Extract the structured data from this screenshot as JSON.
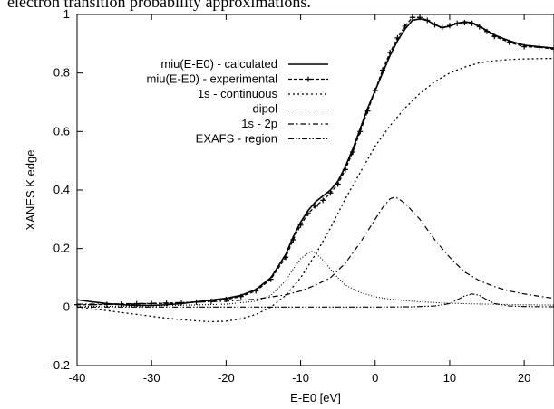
{
  "caption_fragment": "electron transition probability approximations.",
  "chart_data": {
    "type": "line",
    "xlabel": "E-E0 [eV]",
    "ylabel": "XANES K edge",
    "xlim": [
      -40,
      24
    ],
    "ylim": [
      -0.2,
      1.0
    ],
    "x_ticks": [
      -40,
      -30,
      -20,
      -10,
      0,
      10,
      20
    ],
    "y_ticks": [
      -0.2,
      0,
      0.2,
      0.4,
      0.6,
      0.8,
      1
    ],
    "grid": false,
    "legend_position": "upper-left",
    "series": [
      {
        "name": "miu(E-E0) - calculated",
        "style": "solid",
        "x": [
          -40,
          -38,
          -36,
          -34,
          -32,
          -30,
          -28,
          -26,
          -24,
          -22,
          -20,
          -18,
          -16,
          -14,
          -12,
          -11,
          -10,
          -9,
          -8,
          -7,
          -6,
          -5,
          -4,
          -3,
          -2,
          -1,
          0,
          1,
          2,
          3,
          4,
          5,
          6,
          7,
          8,
          9,
          10,
          11,
          12,
          13,
          14,
          15,
          16,
          18,
          20,
          22,
          24
        ],
        "y": [
          0.025,
          0.018,
          0.012,
          0.008,
          0.006,
          0.006,
          0.008,
          0.012,
          0.018,
          0.024,
          0.03,
          0.04,
          0.06,
          0.1,
          0.18,
          0.24,
          0.29,
          0.33,
          0.36,
          0.38,
          0.4,
          0.43,
          0.48,
          0.54,
          0.61,
          0.68,
          0.74,
          0.8,
          0.86,
          0.91,
          0.95,
          0.98,
          0.985,
          0.98,
          0.965,
          0.955,
          0.96,
          0.97,
          0.975,
          0.972,
          0.96,
          0.945,
          0.93,
          0.91,
          0.895,
          0.89,
          0.885
        ]
      },
      {
        "name": "miu(E-E0) - experimental",
        "style": "dashed-markers",
        "x": [
          -40,
          -38,
          -36,
          -34,
          -32,
          -30,
          -28,
          -26,
          -24,
          -22,
          -20,
          -18,
          -16,
          -14,
          -12,
          -11,
          -10,
          -9,
          -8,
          -7,
          -6,
          -5,
          -4,
          -3,
          -2,
          -1,
          0,
          1,
          2,
          3,
          4,
          5,
          6,
          7,
          8,
          9,
          10,
          11,
          12,
          13,
          14,
          15,
          16,
          18,
          20,
          22,
          24
        ],
        "y": [
          0.008,
          0.008,
          0.009,
          0.01,
          0.011,
          0.012,
          0.013,
          0.015,
          0.017,
          0.02,
          0.026,
          0.036,
          0.055,
          0.095,
          0.17,
          0.23,
          0.28,
          0.32,
          0.345,
          0.365,
          0.39,
          0.42,
          0.47,
          0.53,
          0.6,
          0.67,
          0.74,
          0.81,
          0.87,
          0.92,
          0.96,
          0.99,
          0.99,
          0.98,
          0.965,
          0.955,
          0.962,
          0.97,
          0.972,
          0.97,
          0.958,
          0.942,
          0.925,
          0.905,
          0.89,
          0.888,
          0.882
        ]
      },
      {
        "name": "1s - continuous",
        "style": "dotted",
        "x": [
          -40,
          -36,
          -32,
          -28,
          -24,
          -22,
          -20,
          -18,
          -16,
          -14,
          -12,
          -10,
          -8,
          -6,
          -4,
          -2,
          0,
          2,
          4,
          6,
          8,
          10,
          12,
          14,
          16,
          18,
          20,
          22,
          24
        ],
        "y": [
          0.0,
          -0.012,
          -0.025,
          -0.038,
          -0.047,
          -0.05,
          -0.048,
          -0.04,
          -0.025,
          0.0,
          0.04,
          0.1,
          0.18,
          0.27,
          0.37,
          0.46,
          0.55,
          0.62,
          0.68,
          0.73,
          0.77,
          0.8,
          0.82,
          0.835,
          0.842,
          0.846,
          0.848,
          0.849,
          0.85
        ]
      },
      {
        "name": "dipol",
        "style": "fine-dotted",
        "x": [
          -40,
          -30,
          -20,
          -16,
          -14,
          -12,
          -11,
          -10,
          -9,
          -8.5,
          -8,
          -7,
          -6,
          -5,
          -4,
          -2,
          0,
          2,
          4,
          6,
          10,
          15,
          20,
          24
        ],
        "y": [
          0.002,
          0.004,
          0.01,
          0.02,
          0.04,
          0.09,
          0.13,
          0.165,
          0.185,
          0.19,
          0.185,
          0.16,
          0.13,
          0.1,
          0.075,
          0.05,
          0.035,
          0.027,
          0.022,
          0.018,
          0.013,
          0.01,
          0.008,
          0.007
        ]
      },
      {
        "name": "1s - 2p",
        "style": "dash-dot",
        "x": [
          -40,
          -35,
          -30,
          -25,
          -20,
          -16,
          -12,
          -10,
          -8,
          -6,
          -4,
          -2,
          0,
          1,
          2,
          2.5,
          3,
          4,
          6,
          8,
          10,
          12,
          14,
          16,
          18,
          20,
          22,
          24
        ],
        "y": [
          0.01,
          0.011,
          0.013,
          0.016,
          0.02,
          0.027,
          0.042,
          0.055,
          0.075,
          0.1,
          0.15,
          0.22,
          0.3,
          0.34,
          0.37,
          0.375,
          0.372,
          0.355,
          0.3,
          0.23,
          0.17,
          0.12,
          0.09,
          0.07,
          0.055,
          0.045,
          0.037,
          0.03
        ]
      },
      {
        "name": "EXAFS - region",
        "style": "dash-dot-dot",
        "x": [
          -40,
          -20,
          0,
          5,
          8,
          10,
          11,
          12,
          13,
          14,
          15,
          16,
          18,
          20,
          24
        ],
        "y": [
          0.0,
          0.0,
          0.0,
          0.001,
          0.004,
          0.012,
          0.025,
          0.038,
          0.045,
          0.04,
          0.025,
          0.012,
          0.004,
          0.002,
          0.001
        ]
      }
    ]
  }
}
